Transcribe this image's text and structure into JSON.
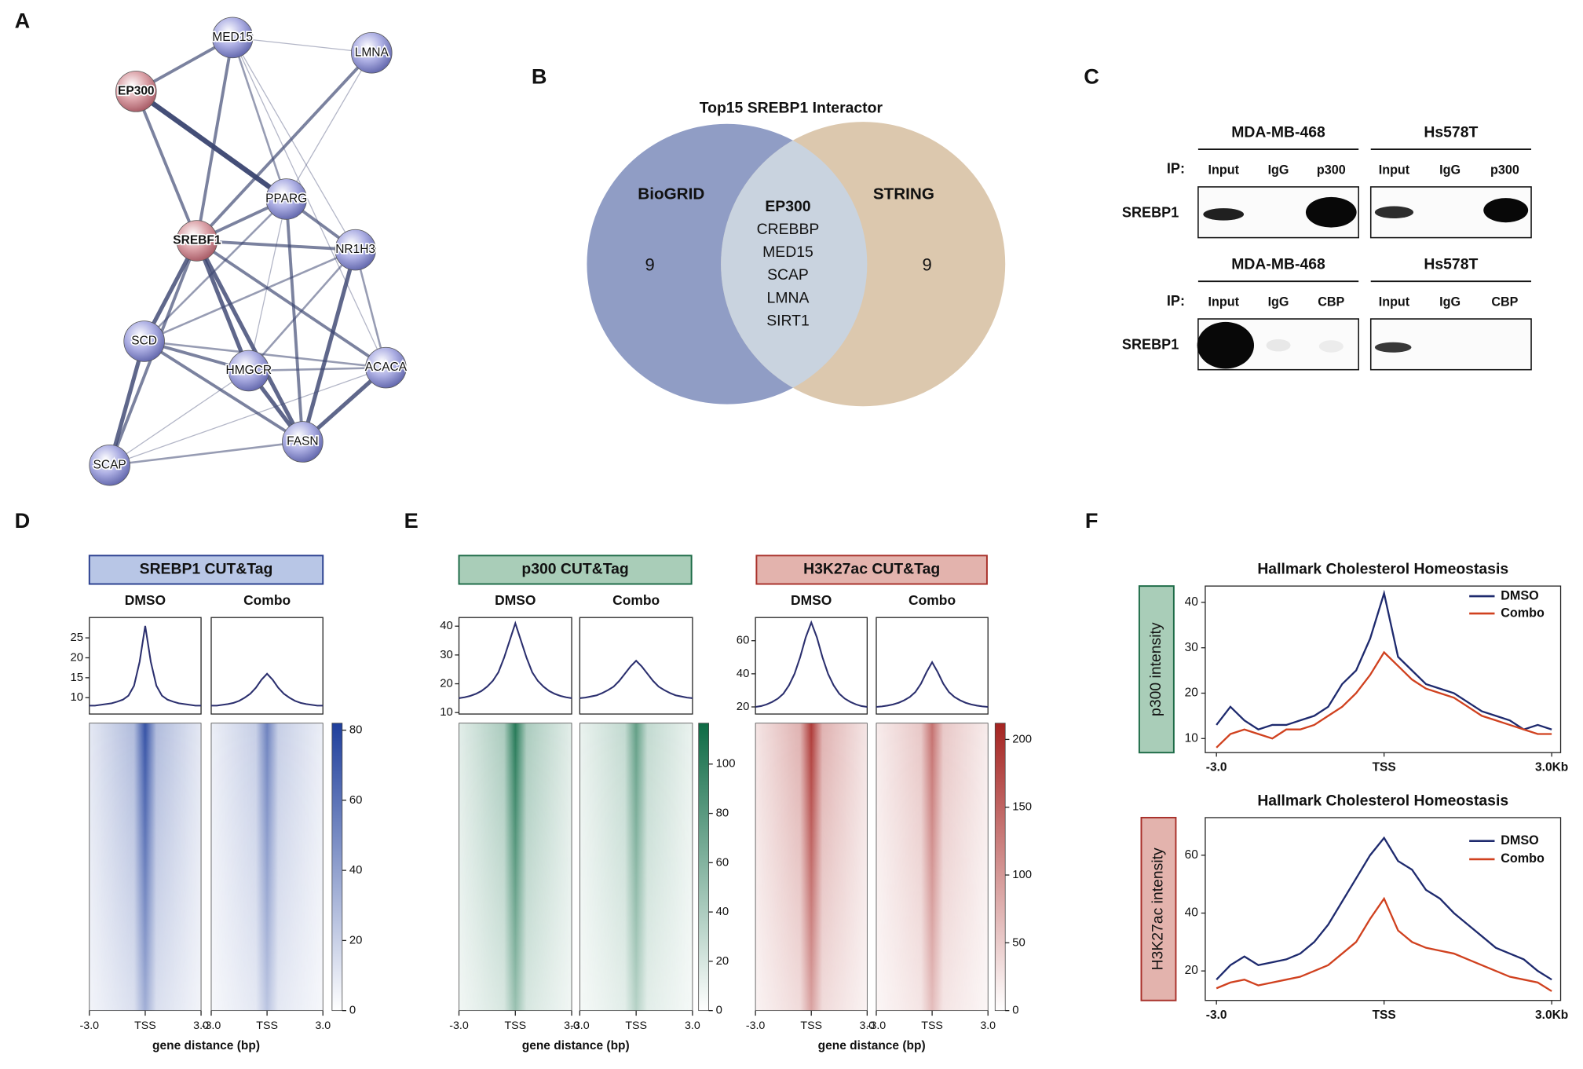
{
  "panel_labels": [
    "A",
    "B",
    "C",
    "D",
    "E",
    "F"
  ],
  "network": {
    "nodes": [
      "MED15",
      "LMNA",
      "EP300",
      "PPARG",
      "SREBF1",
      "NR1H3",
      "SCD",
      "HMGCR",
      "ACACA",
      "SCAP",
      "FASN"
    ]
  },
  "venn": {
    "title": "Top15 SREBP1 Interactor",
    "left_label": "BioGRID",
    "right_label": "STRING",
    "left_count": 9,
    "right_count": 9,
    "shared": [
      "EP300",
      "CREBBP",
      "MED15",
      "SCAP",
      "LMNA",
      "SIRT1"
    ]
  },
  "blot": {
    "cell_lines": [
      "MDA-MB-468",
      "Hs578T"
    ],
    "ip_label": "IP:",
    "protein": "SREBP1",
    "rows": [
      {
        "lanes": [
          "Input",
          "IgG",
          "p300"
        ]
      },
      {
        "lanes": [
          "Input",
          "IgG",
          "CBP"
        ]
      }
    ]
  },
  "profile_x": [
    -3,
    -2.7,
    -2.4,
    -2.1,
    -1.8,
    -1.5,
    -1.2,
    -0.9,
    -0.6,
    -0.3,
    0,
    0.3,
    0.6,
    0.9,
    1.2,
    1.5,
    1.8,
    2.1,
    2.4,
    2.7,
    3
  ],
  "heatmap_xticks": [
    {
      "value": -3,
      "label": "-3.0"
    },
    {
      "value": 0,
      "label": "TSS"
    },
    {
      "value": 3,
      "label": "3.0"
    }
  ],
  "heatmap_xlabel": "gene distance (bp)",
  "heatmaps": [
    {
      "title": "SREBP1 CUT&Tag",
      "color": "#1f3f9c",
      "conditions": [
        "DMSO",
        "Combo"
      ],
      "profile_ylim": [
        5.9,
        30.1
      ],
      "profile_yticks": [
        10,
        15,
        20,
        25
      ],
      "profiles": [
        [
          8,
          8,
          8.2,
          8.4,
          8.6,
          9,
          9.5,
          10.5,
          13,
          19,
          28,
          19,
          13,
          10.5,
          9.5,
          9,
          8.6,
          8.4,
          8.2,
          8,
          8
        ],
        [
          8,
          8,
          8.2,
          8.4,
          8.7,
          9.2,
          10,
          11,
          12.5,
          14.5,
          16,
          14.5,
          12.5,
          11,
          10,
          9.2,
          8.7,
          8.4,
          8.2,
          8,
          8
        ]
      ],
      "colorbar_lim": [
        0,
        82
      ],
      "colorbar_ticks": [
        0,
        20,
        40,
        60,
        80
      ]
    },
    {
      "title": "p300 CUT&Tag",
      "color": "#0e6b45",
      "conditions": [
        "DMSO",
        "Combo"
      ],
      "profile_ylim": [
        9.5,
        43
      ],
      "profile_yticks": [
        10,
        20,
        30,
        40
      ],
      "profiles": [
        [
          15,
          15.3,
          15.8,
          16.5,
          17.5,
          19,
          21,
          24,
          29,
          35,
          41,
          35,
          29,
          24,
          21,
          19,
          17.5,
          16.5,
          15.8,
          15.3,
          15
        ],
        [
          15,
          15.2,
          15.6,
          16,
          16.8,
          17.8,
          19,
          21,
          23.5,
          26,
          28,
          26,
          23.5,
          21,
          19,
          17.8,
          16.8,
          16,
          15.6,
          15.2,
          15
        ]
      ],
      "colorbar_lim": [
        0,
        116.6
      ],
      "colorbar_ticks": [
        0,
        20,
        40,
        60,
        80,
        100
      ]
    },
    {
      "title": "H3K27ac CUT&Tag",
      "color": "#a52421",
      "conditions": [
        "DMSO",
        "Combo"
      ],
      "profile_ylim": [
        15.7,
        74
      ],
      "profile_yticks": [
        20,
        40,
        60
      ],
      "profiles": [
        [
          20,
          20.5,
          21.5,
          23,
          25,
          28,
          33,
          40,
          50,
          62,
          71,
          62,
          50,
          40,
          33,
          28,
          25,
          23,
          21.5,
          20.5,
          20
        ],
        [
          20,
          20.3,
          20.8,
          21.5,
          22.5,
          24,
          26,
          29,
          34,
          41,
          47,
          41,
          34,
          29,
          26,
          24,
          22.5,
          21.5,
          20.8,
          20.3,
          20
        ]
      ],
      "colorbar_lim": [
        0,
        212
      ],
      "colorbar_ticks": [
        0,
        50,
        100,
        150,
        200
      ]
    }
  ],
  "line_charts": [
    {
      "type": "line",
      "title": "Hallmark Cholesterol Homeostasis",
      "ylabel": "p300 intensity",
      "xlim": [
        -3.2,
        3.16
      ],
      "ylim": [
        6.9,
        43.6
      ],
      "yticks": [
        10,
        20,
        30,
        40
      ],
      "xticks": [
        {
          "value": -3,
          "label": "-3.0"
        },
        {
          "value": 0,
          "label": "TSS"
        },
        {
          "value": 3,
          "label": "3.0Kb"
        }
      ],
      "legend": "upper right",
      "x": [
        -3,
        -2.75,
        -2.5,
        -2.25,
        -2,
        -1.75,
        -1.5,
        -1.25,
        -1,
        -0.75,
        -0.5,
        -0.25,
        0,
        0.25,
        0.5,
        0.75,
        1,
        1.25,
        1.5,
        1.75,
        2,
        2.25,
        2.5,
        2.75,
        3
      ],
      "series": [
        {
          "name": "DMSO",
          "color": "#1e2a6e",
          "values": [
            13,
            17,
            14,
            12,
            13,
            13,
            14,
            15,
            17,
            22,
            25,
            32,
            42,
            28,
            25,
            22,
            21,
            20,
            18,
            16,
            15,
            14,
            12,
            13,
            12
          ]
        },
        {
          "name": "Combo",
          "color": "#d0411f",
          "values": [
            8,
            11,
            12,
            11,
            10,
            12,
            12,
            13,
            15,
            17,
            20,
            24,
            29,
            26,
            23,
            21,
            20,
            19,
            17,
            15,
            14,
            13,
            12,
            11,
            11
          ]
        }
      ]
    },
    {
      "type": "line",
      "title": "Hallmark Cholesterol Homeostasis",
      "ylabel": "H3K27ac intensity",
      "xlim": [
        -3.2,
        3.16
      ],
      "ylim": [
        9.8,
        73
      ],
      "yticks": [
        20,
        40,
        60
      ],
      "xticks": [
        {
          "value": -3,
          "label": "-3.0"
        },
        {
          "value": 0,
          "label": "TSS"
        },
        {
          "value": 3,
          "label": "3.0Kb"
        }
      ],
      "legend": "upper right",
      "x": [
        -3,
        -2.75,
        -2.5,
        -2.25,
        -2,
        -1.75,
        -1.5,
        -1.25,
        -1,
        -0.75,
        -0.5,
        -0.25,
        0,
        0.25,
        0.5,
        0.75,
        1,
        1.25,
        1.5,
        1.75,
        2,
        2.25,
        2.5,
        2.75,
        3
      ],
      "series": [
        {
          "name": "DMSO",
          "color": "#1e2a6e",
          "values": [
            17,
            22,
            25,
            22,
            23,
            24,
            26,
            30,
            36,
            44,
            52,
            60,
            66,
            58,
            55,
            48,
            45,
            40,
            36,
            32,
            28,
            26,
            24,
            20,
            17
          ]
        },
        {
          "name": "Combo",
          "color": "#d0411f",
          "values": [
            14,
            16,
            17,
            15,
            16,
            17,
            18,
            20,
            22,
            26,
            30,
            38,
            45,
            34,
            30,
            28,
            27,
            26,
            24,
            22,
            20,
            18,
            17,
            16,
            13
          ]
        }
      ]
    }
  ]
}
